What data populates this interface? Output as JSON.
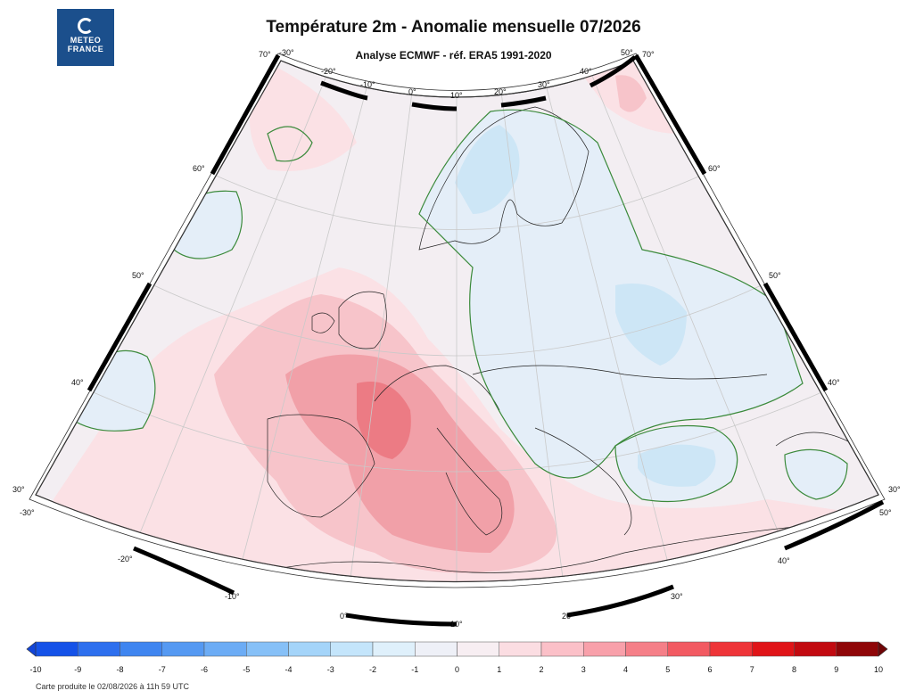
{
  "logo": {
    "line1": "METEO",
    "line2": "FRANCE"
  },
  "title": "Température 2m - Anomalie mensuelle 07/2026",
  "subtitle": "Analyse ECMWF - réf. ERA5 1991-2020",
  "graticule": {
    "lon_top": [
      "-30°",
      "-20°",
      "-10°",
      "0°",
      "10°",
      "20°",
      "30°",
      "40°",
      "50°"
    ],
    "lon_bottom": [
      "-20°",
      "-10°",
      "0°",
      "10°",
      "20°",
      "30°",
      "40°"
    ],
    "lat_left": [
      "70°",
      "60°",
      "50°",
      "40°",
      "30°"
    ],
    "lat_right": [
      "70°",
      "60°",
      "50°",
      "40°",
      "30°"
    ],
    "corner_left": "-30°",
    "corner_right": "50°"
  },
  "colorbar": {
    "ticks": [
      "-10",
      "-9",
      "-8",
      "-7",
      "-6",
      "-5",
      "-4",
      "-3",
      "-2",
      "-1",
      "0",
      "1",
      "2",
      "3",
      "4",
      "5",
      "6",
      "7",
      "8",
      "9",
      "10"
    ],
    "colors": [
      "#1552e8",
      "#2d6fee",
      "#3f85f0",
      "#5599f2",
      "#6cacf5",
      "#86c0f7",
      "#a4d4f9",
      "#c4e5fb",
      "#dff0fb",
      "#eef0f7",
      "#f7eef2",
      "#fbdde2",
      "#fbc0c8",
      "#f8a0aa",
      "#f57f88",
      "#f25a62",
      "#ee3438",
      "#e01418",
      "#c20a10",
      "#8f0608"
    ]
  },
  "anomaly_palette": {
    "neutral": "#f3eef2",
    "pos1": "#fbe1e5",
    "pos2": "#f7c4ca",
    "pos3": "#f1a0a8",
    "pos4": "#ec7b84",
    "neg1": "#e4eef8",
    "neg2": "#cde6f6"
  },
  "footer": "Carte produite le 02/08/2026 à 11h 59 UTC"
}
